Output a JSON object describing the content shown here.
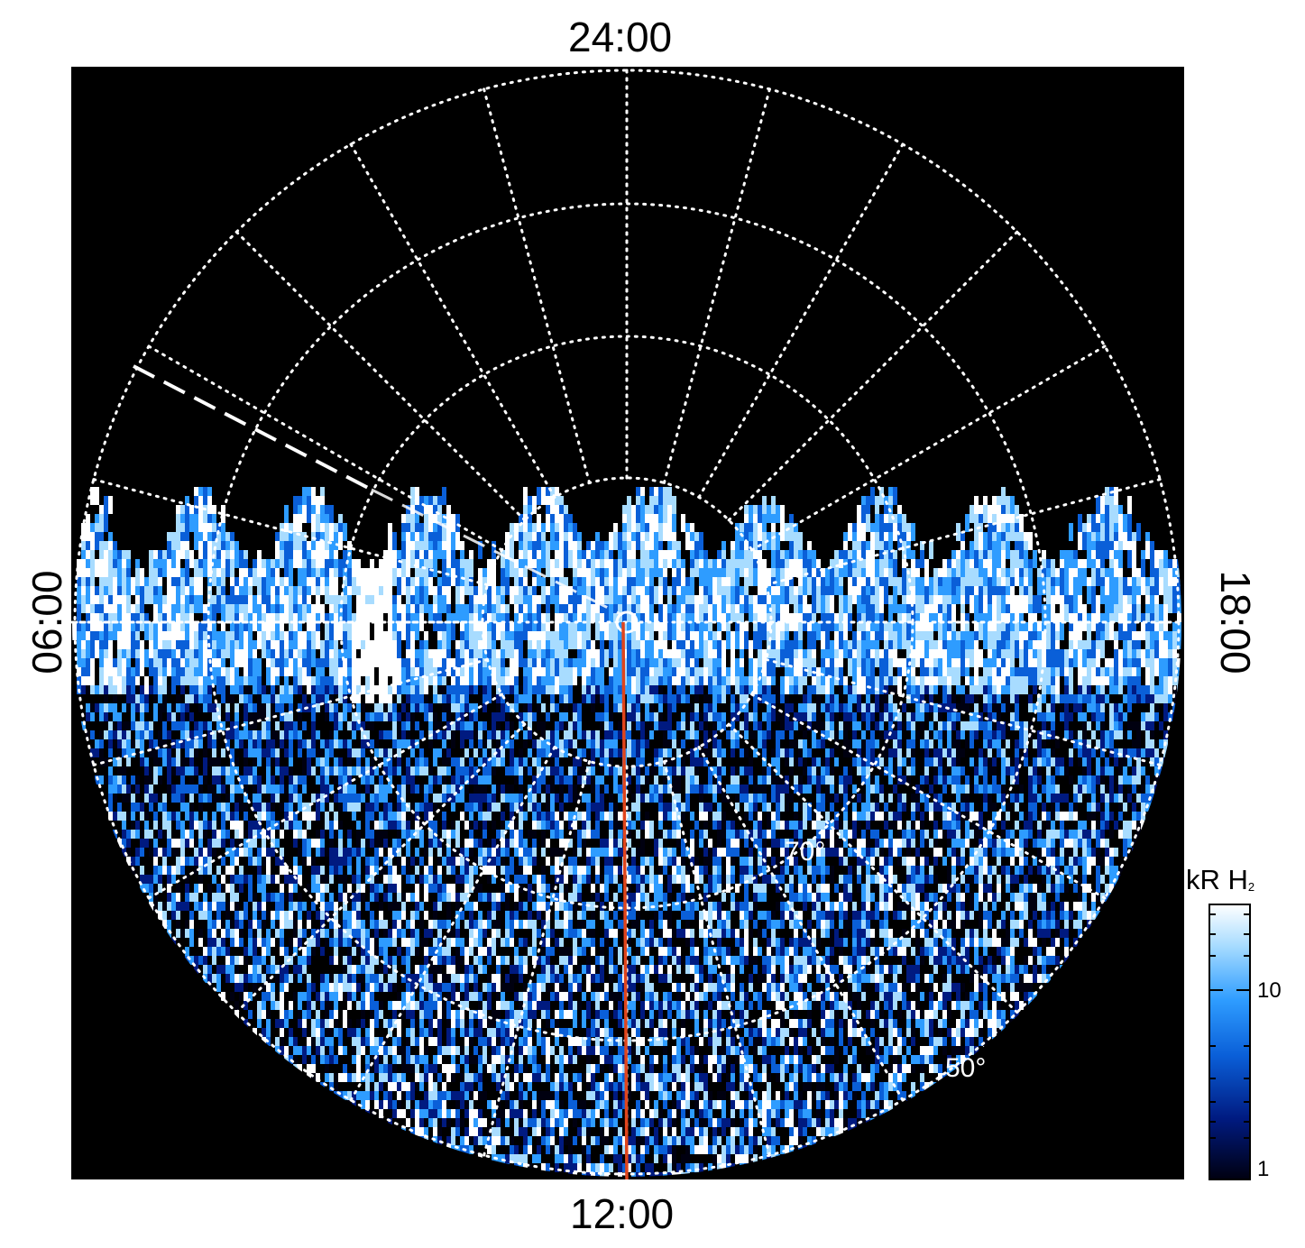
{
  "labels": {
    "top": "24:00",
    "bottom": "12:00",
    "left": "06:00",
    "right": "18:00"
  },
  "latitude_labels": {
    "lat_70": "70°",
    "lat_50": "50°"
  },
  "colorbar": {
    "title_main": "kR H",
    "title_sub": "2",
    "tick_10": "10",
    "tick_1": "1",
    "scale": "log",
    "range": [
      1,
      30
    ],
    "colors": [
      "#000010",
      "#001a80",
      "#0a5fd8",
      "#2e9cff",
      "#a8dcff",
      "#ffffff"
    ]
  },
  "colors": {
    "background": "#000000",
    "grid": "#ffffff",
    "meridian_line": "#e0451c"
  }
}
